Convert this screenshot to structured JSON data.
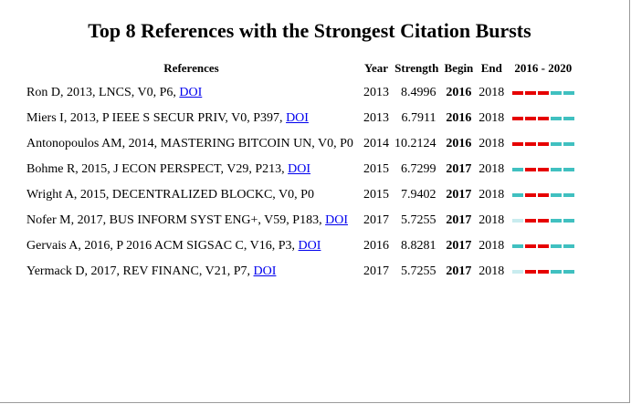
{
  "title": "Top 8 References with the Strongest Citation Bursts",
  "headers": {
    "references": "References",
    "year": "Year",
    "strength": "Strength",
    "begin": "Begin",
    "end": "End",
    "range": "2016 - 2020"
  },
  "colors": {
    "burst": "#e60000",
    "active": "#40c0c0",
    "inactive": "#c9ecef"
  },
  "rows": [
    {
      "ref": "Ron D, 2013, LNCS, V0, P6, ",
      "doi": "DOI",
      "year": "2013",
      "strength": "8.4996",
      "begin": "2016",
      "end": "2018",
      "bars": [
        "burst",
        "burst",
        "burst",
        "active",
        "active"
      ]
    },
    {
      "ref": "Miers I, 2013, P IEEE S SECUR PRIV, V0, P397, ",
      "doi": "DOI",
      "year": "2013",
      "strength": "6.7911",
      "begin": "2016",
      "end": "2018",
      "bars": [
        "burst",
        "burst",
        "burst",
        "active",
        "active"
      ]
    },
    {
      "ref": "Antonopoulos AM, 2014, MASTERING BITCOIN UN, V0, P0",
      "doi": "",
      "year": "2014",
      "strength": "10.2124",
      "begin": "2016",
      "end": "2018",
      "bars": [
        "burst",
        "burst",
        "burst",
        "active",
        "active"
      ]
    },
    {
      "ref": "Bohme R, 2015, J ECON PERSPECT, V29, P213, ",
      "doi": "DOI",
      "year": "2015",
      "strength": "6.7299",
      "begin": "2017",
      "end": "2018",
      "bars": [
        "active",
        "burst",
        "burst",
        "active",
        "active"
      ]
    },
    {
      "ref": "Wright A, 2015, DECENTRALIZED BLOCKC, V0, P0",
      "doi": "",
      "year": "2015",
      "strength": "7.9402",
      "begin": "2017",
      "end": "2018",
      "bars": [
        "active",
        "burst",
        "burst",
        "active",
        "active"
      ]
    },
    {
      "ref": "Nofer M, 2017, BUS INFORM SYST ENG+, V59, P183, ",
      "doi": "DOI",
      "year": "2017",
      "strength": "5.7255",
      "begin": "2017",
      "end": "2018",
      "bars": [
        "inactive",
        "burst",
        "burst",
        "active",
        "active"
      ]
    },
    {
      "ref": "Gervais A, 2016, P 2016 ACM SIGSAC C, V16, P3, ",
      "doi": "DOI",
      "year": "2016",
      "strength": "8.8281",
      "begin": "2017",
      "end": "2018",
      "bars": [
        "active",
        "burst",
        "burst",
        "active",
        "active"
      ]
    },
    {
      "ref": "Yermack D, 2017, REV FINANC, V21, P7, ",
      "doi": "DOI",
      "year": "2017",
      "strength": "5.7255",
      "begin": "2017",
      "end": "2018",
      "bars": [
        "inactive",
        "burst",
        "burst",
        "active",
        "active"
      ]
    }
  ]
}
